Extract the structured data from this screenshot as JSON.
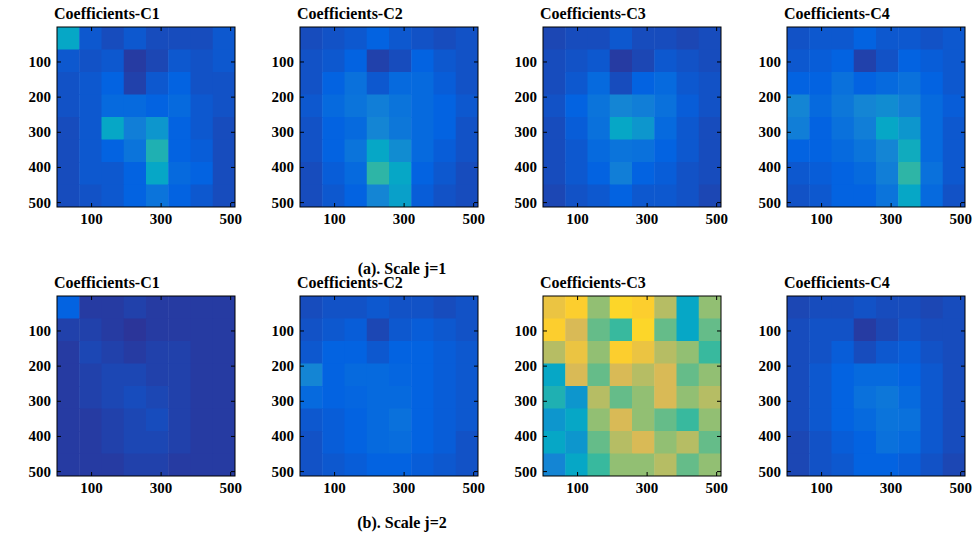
{
  "captions": [
    "(a). Scale j=1",
    "(b). Scale j=2"
  ],
  "chart_data": [
    {
      "type": "heatmap",
      "title": "Coefficients-C1",
      "xlim": [
        0.5,
        512.5
      ],
      "ylim": [
        0.5,
        512.5
      ],
      "xticks": [
        100,
        300,
        500
      ],
      "yticks": [
        100,
        200,
        300,
        400,
        500
      ],
      "clim": [
        0,
        1
      ],
      "cells": [
        [
          0.3,
          0.08,
          0.06,
          0.08,
          0.06,
          0.06,
          0.06,
          0.08
        ],
        [
          0.08,
          0.07,
          0.08,
          0.03,
          0.05,
          0.08,
          0.07,
          0.08
        ],
        [
          0.07,
          0.08,
          0.1,
          0.04,
          0.08,
          0.1,
          0.07,
          0.07
        ],
        [
          0.07,
          0.08,
          0.12,
          0.12,
          0.1,
          0.12,
          0.08,
          0.07
        ],
        [
          0.06,
          0.08,
          0.3,
          0.18,
          0.25,
          0.1,
          0.08,
          0.06
        ],
        [
          0.06,
          0.08,
          0.1,
          0.15,
          0.35,
          0.1,
          0.09,
          0.06
        ],
        [
          0.06,
          0.08,
          0.08,
          0.1,
          0.3,
          0.12,
          0.1,
          0.06
        ],
        [
          0.06,
          0.07,
          0.08,
          0.1,
          0.15,
          0.1,
          0.08,
          0.06
        ]
      ]
    },
    {
      "type": "heatmap",
      "title": "Coefficients-C2",
      "xlim": [
        0.5,
        512.5
      ],
      "ylim": [
        0.5,
        512.5
      ],
      "xticks": [
        100,
        300,
        500
      ],
      "yticks": [
        100,
        200,
        300,
        400,
        500
      ],
      "clim": [
        0,
        1
      ],
      "cells": [
        [
          0.06,
          0.07,
          0.08,
          0.1,
          0.08,
          0.07,
          0.06,
          0.07
        ],
        [
          0.07,
          0.08,
          0.1,
          0.04,
          0.06,
          0.1,
          0.08,
          0.07
        ],
        [
          0.07,
          0.1,
          0.14,
          0.08,
          0.12,
          0.12,
          0.09,
          0.07
        ],
        [
          0.08,
          0.12,
          0.15,
          0.18,
          0.15,
          0.12,
          0.1,
          0.08
        ],
        [
          0.07,
          0.1,
          0.12,
          0.2,
          0.16,
          0.12,
          0.1,
          0.07
        ],
        [
          0.07,
          0.1,
          0.15,
          0.3,
          0.22,
          0.12,
          0.09,
          0.07
        ],
        [
          0.06,
          0.09,
          0.12,
          0.38,
          0.3,
          0.1,
          0.08,
          0.06
        ],
        [
          0.06,
          0.08,
          0.1,
          0.2,
          0.28,
          0.09,
          0.07,
          0.06
        ]
      ]
    },
    {
      "type": "heatmap",
      "title": "Coefficients-C3",
      "xlim": [
        0.5,
        512.5
      ],
      "ylim": [
        0.5,
        512.5
      ],
      "xticks": [
        100,
        300,
        500
      ],
      "yticks": [
        100,
        200,
        300,
        400,
        500
      ],
      "clim": [
        0,
        1
      ],
      "cells": [
        [
          0.05,
          0.06,
          0.06,
          0.08,
          0.06,
          0.06,
          0.05,
          0.06
        ],
        [
          0.06,
          0.07,
          0.08,
          0.03,
          0.05,
          0.08,
          0.07,
          0.06
        ],
        [
          0.06,
          0.08,
          0.12,
          0.06,
          0.1,
          0.12,
          0.08,
          0.07
        ],
        [
          0.07,
          0.1,
          0.15,
          0.2,
          0.18,
          0.14,
          0.09,
          0.07
        ],
        [
          0.06,
          0.09,
          0.14,
          0.3,
          0.25,
          0.12,
          0.08,
          0.06
        ],
        [
          0.06,
          0.08,
          0.12,
          0.15,
          0.14,
          0.1,
          0.08,
          0.06
        ],
        [
          0.06,
          0.08,
          0.1,
          0.18,
          0.1,
          0.09,
          0.07,
          0.06
        ],
        [
          0.05,
          0.07,
          0.08,
          0.1,
          0.08,
          0.08,
          0.07,
          0.05
        ]
      ]
    },
    {
      "type": "heatmap",
      "title": "Coefficients-C4",
      "xlim": [
        0.5,
        512.5
      ],
      "ylim": [
        0.5,
        512.5
      ],
      "xticks": [
        100,
        300,
        500
      ],
      "yticks": [
        100,
        200,
        300,
        400,
        500
      ],
      "clim": [
        0,
        1
      ],
      "cells": [
        [
          0.07,
          0.08,
          0.08,
          0.1,
          0.08,
          0.08,
          0.07,
          0.08
        ],
        [
          0.08,
          0.09,
          0.1,
          0.04,
          0.07,
          0.1,
          0.09,
          0.08
        ],
        [
          0.1,
          0.1,
          0.14,
          0.1,
          0.12,
          0.14,
          0.1,
          0.08
        ],
        [
          0.2,
          0.12,
          0.16,
          0.2,
          0.22,
          0.18,
          0.12,
          0.09
        ],
        [
          0.18,
          0.1,
          0.14,
          0.18,
          0.3,
          0.25,
          0.12,
          0.08
        ],
        [
          0.1,
          0.1,
          0.12,
          0.15,
          0.2,
          0.32,
          0.12,
          0.08
        ],
        [
          0.08,
          0.09,
          0.1,
          0.12,
          0.18,
          0.38,
          0.14,
          0.08
        ],
        [
          0.07,
          0.08,
          0.1,
          0.1,
          0.15,
          0.3,
          0.12,
          0.07
        ]
      ]
    },
    {
      "type": "heatmap",
      "title": "Coefficients-C1",
      "xlim": [
        0.5,
        512.5
      ],
      "ylim": [
        0.5,
        512.5
      ],
      "xticks": [
        100,
        300,
        500
      ],
      "yticks": [
        100,
        200,
        300,
        400,
        500
      ],
      "clim": [
        0,
        1
      ],
      "cells": [
        [
          0.1,
          0.03,
          0.03,
          0.04,
          0.03,
          0.03,
          0.03,
          0.03
        ],
        [
          0.04,
          0.04,
          0.03,
          0.02,
          0.03,
          0.03,
          0.03,
          0.03
        ],
        [
          0.03,
          0.05,
          0.04,
          0.03,
          0.04,
          0.04,
          0.03,
          0.03
        ],
        [
          0.03,
          0.04,
          0.05,
          0.05,
          0.04,
          0.04,
          0.03,
          0.03
        ],
        [
          0.03,
          0.04,
          0.05,
          0.06,
          0.05,
          0.04,
          0.03,
          0.03
        ],
        [
          0.03,
          0.03,
          0.04,
          0.05,
          0.06,
          0.04,
          0.03,
          0.03
        ],
        [
          0.03,
          0.03,
          0.04,
          0.05,
          0.05,
          0.04,
          0.03,
          0.03
        ],
        [
          0.03,
          0.03,
          0.03,
          0.04,
          0.04,
          0.03,
          0.03,
          0.03
        ]
      ]
    },
    {
      "type": "heatmap",
      "title": "Coefficients-C2",
      "xlim": [
        0.5,
        512.5
      ],
      "ylim": [
        0.5,
        512.5
      ],
      "xticks": [
        100,
        300,
        500
      ],
      "yticks": [
        100,
        200,
        300,
        400,
        500
      ],
      "clim": [
        0,
        1
      ],
      "cells": [
        [
          0.06,
          0.07,
          0.07,
          0.08,
          0.07,
          0.07,
          0.06,
          0.07
        ],
        [
          0.07,
          0.08,
          0.09,
          0.05,
          0.08,
          0.09,
          0.08,
          0.07
        ],
        [
          0.08,
          0.1,
          0.1,
          0.08,
          0.1,
          0.1,
          0.09,
          0.08
        ],
        [
          0.2,
          0.1,
          0.12,
          0.12,
          0.11,
          0.1,
          0.09,
          0.08
        ],
        [
          0.12,
          0.1,
          0.11,
          0.12,
          0.12,
          0.1,
          0.09,
          0.08
        ],
        [
          0.08,
          0.09,
          0.1,
          0.12,
          0.14,
          0.1,
          0.09,
          0.08
        ],
        [
          0.07,
          0.09,
          0.1,
          0.12,
          0.13,
          0.1,
          0.09,
          0.07
        ],
        [
          0.07,
          0.08,
          0.09,
          0.1,
          0.1,
          0.09,
          0.08,
          0.07
        ]
      ]
    },
    {
      "type": "heatmap",
      "title": "Coefficients-C3",
      "xlim": [
        0.5,
        512.5
      ],
      "ylim": [
        0.5,
        512.5
      ],
      "xticks": [
        100,
        300,
        500
      ],
      "yticks": [
        100,
        200,
        300,
        400,
        500
      ],
      "clim": [
        0,
        1
      ],
      "cells": [
        [
          0.65,
          0.7,
          0.5,
          0.75,
          0.7,
          0.55,
          0.3,
          0.5
        ],
        [
          0.7,
          0.6,
          0.45,
          0.4,
          0.75,
          0.45,
          0.3,
          0.45
        ],
        [
          0.55,
          0.65,
          0.5,
          0.7,
          0.65,
          0.55,
          0.5,
          0.4
        ],
        [
          0.3,
          0.6,
          0.45,
          0.6,
          0.55,
          0.6,
          0.45,
          0.5
        ],
        [
          0.35,
          0.25,
          0.55,
          0.45,
          0.5,
          0.6,
          0.5,
          0.55
        ],
        [
          0.25,
          0.3,
          0.5,
          0.6,
          0.5,
          0.45,
          0.4,
          0.5
        ],
        [
          0.3,
          0.25,
          0.45,
          0.55,
          0.6,
          0.5,
          0.55,
          0.45
        ],
        [
          0.2,
          0.3,
          0.4,
          0.5,
          0.5,
          0.55,
          0.45,
          0.5
        ]
      ]
    },
    {
      "type": "heatmap",
      "title": "Coefficients-C4",
      "xlim": [
        0.5,
        512.5
      ],
      "ylim": [
        0.5,
        512.5
      ],
      "xticks": [
        100,
        300,
        500
      ],
      "yticks": [
        100,
        200,
        300,
        400,
        500
      ],
      "clim": [
        0,
        1
      ],
      "cells": [
        [
          0.05,
          0.06,
          0.06,
          0.07,
          0.06,
          0.06,
          0.05,
          0.06
        ],
        [
          0.06,
          0.07,
          0.07,
          0.03,
          0.05,
          0.07,
          0.06,
          0.06
        ],
        [
          0.06,
          0.07,
          0.09,
          0.06,
          0.08,
          0.09,
          0.07,
          0.06
        ],
        [
          0.06,
          0.08,
          0.1,
          0.12,
          0.12,
          0.1,
          0.08,
          0.06
        ],
        [
          0.06,
          0.08,
          0.1,
          0.14,
          0.16,
          0.12,
          0.08,
          0.06
        ],
        [
          0.06,
          0.08,
          0.1,
          0.12,
          0.15,
          0.14,
          0.08,
          0.06
        ],
        [
          0.05,
          0.07,
          0.09,
          0.1,
          0.14,
          0.12,
          0.08,
          0.06
        ],
        [
          0.05,
          0.07,
          0.08,
          0.1,
          0.1,
          0.09,
          0.07,
          0.05
        ]
      ]
    }
  ]
}
